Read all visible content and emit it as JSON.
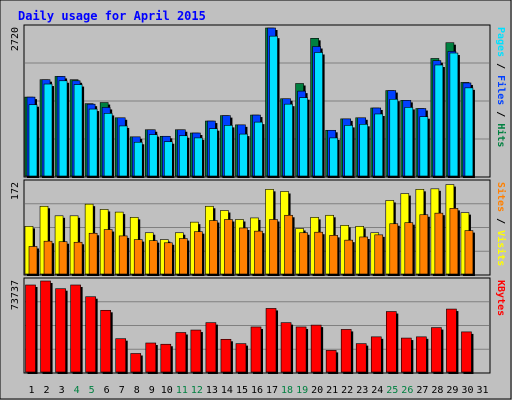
{
  "chart_data": {
    "type": "bar",
    "title": "Daily usage for April 2015",
    "colors": {
      "title": "#0000ff",
      "background": "#c0c0c0",
      "frame": "#000000",
      "grid": "#808080",
      "hits": "#008040",
      "files": "#0040ff",
      "pages": "#00e0ff",
      "visits": "#ffff00",
      "sites": "#ff8000",
      "kbytes": "#ff0000",
      "weekday_label": "#000000",
      "weekend_label": "#008040"
    },
    "categories": [
      "1",
      "2",
      "3",
      "4",
      "5",
      "6",
      "7",
      "8",
      "9",
      "10",
      "11",
      "12",
      "13",
      "14",
      "15",
      "16",
      "17",
      "18",
      "19",
      "20",
      "21",
      "22",
      "23",
      "24",
      "25",
      "26",
      "27",
      "28",
      "29",
      "30",
      "31"
    ],
    "weekend_days": [
      "4",
      "5",
      "11",
      "12",
      "18",
      "19",
      "25",
      "26"
    ],
    "panels": [
      {
        "id": "top",
        "max_label": "2720",
        "max": 2720,
        "right_label_parts": [
          {
            "text": "Pages",
            "color": "#00e0ff"
          },
          {
            "text": " / ",
            "color": "#000000"
          },
          {
            "text": "Files",
            "color": "#0040ff"
          },
          {
            "text": " / ",
            "color": "#000000"
          },
          {
            "text": "Hits",
            "color": "#008040"
          }
        ],
        "series": [
          {
            "name": "Hits",
            "color": "#008040",
            "values": [
              1450,
              1770,
              1830,
              1770,
              1330,
              1350,
              1070,
              720,
              850,
              730,
              850,
              790,
              1010,
              1110,
              940,
              1120,
              2720,
              1420,
              1700,
              2530,
              840,
              1050,
              1070,
              1250,
              1570,
              1390,
              1240,
              2160,
              2450,
              1720,
              0
            ]
          },
          {
            "name": "Files",
            "color": "#0040ff",
            "values": [
              1450,
              1770,
              1830,
              1750,
              1320,
              1260,
              1070,
              720,
              850,
              730,
              850,
              790,
              1010,
              1110,
              940,
              1120,
              2720,
              1420,
              1560,
              2380,
              840,
              1050,
              1070,
              1250,
              1570,
              1390,
              1240,
              2120,
              2290,
              1710,
              0
            ]
          },
          {
            "name": "Pages",
            "color": "#00e0ff",
            "values": [
              1310,
              1690,
              1750,
              1680,
              1230,
              1150,
              920,
              620,
              760,
              630,
              740,
              700,
              870,
              930,
              770,
              990,
              2570,
              1320,
              1440,
              2270,
              700,
              930,
              950,
              1140,
              1410,
              1260,
              1090,
              2040,
              2260,
              1620,
              0
            ]
          }
        ]
      },
      {
        "id": "middle",
        "max_label": "172",
        "max": 172,
        "right_label_parts": [
          {
            "text": "Sites",
            "color": "#ff8000"
          },
          {
            "text": " / ",
            "color": "#000000"
          },
          {
            "text": "Visits",
            "color": "#ffff00"
          }
        ],
        "series": [
          {
            "name": "Visits",
            "color": "#ffff00",
            "values": [
              90,
              128,
              110,
              110,
              132,
              122,
              117,
              107,
              78,
              65,
              78,
              98,
              128,
              120,
              103,
              106,
              160,
              156,
              86,
              107,
              111,
              92,
              90,
              78,
              139,
              152,
              160,
              161,
              169,
              116,
              0
            ]
          },
          {
            "name": "Sites",
            "color": "#ff8000",
            "values": [
              52,
              62,
              61,
              60,
              77,
              84,
              72,
              65,
              63,
              59,
              67,
              80,
              101,
              103,
              87,
              81,
              103,
              111,
              78,
              79,
              73,
              64,
              70,
              74,
              95,
              97,
              112,
              115,
              124,
              82,
              0
            ]
          }
        ]
      },
      {
        "id": "bottom",
        "max_label": "73737",
        "max": 73737,
        "right_label_parts": [
          {
            "text": "KBytes",
            "color": "#ff0000"
          }
        ],
        "series": [
          {
            "name": "KBytes",
            "color": "#ff0000",
            "values": [
              70500,
              73737,
              67500,
              70500,
              61000,
              50000,
              27000,
              15000,
              23500,
              22500,
              32000,
              34000,
              40000,
              26500,
              23000,
              36500,
              51500,
              40000,
              36500,
              38000,
              17500,
              34500,
              23000,
              28500,
              49000,
              27500,
              28500,
              36000,
              51000,
              32500,
              0
            ]
          }
        ]
      }
    ]
  }
}
